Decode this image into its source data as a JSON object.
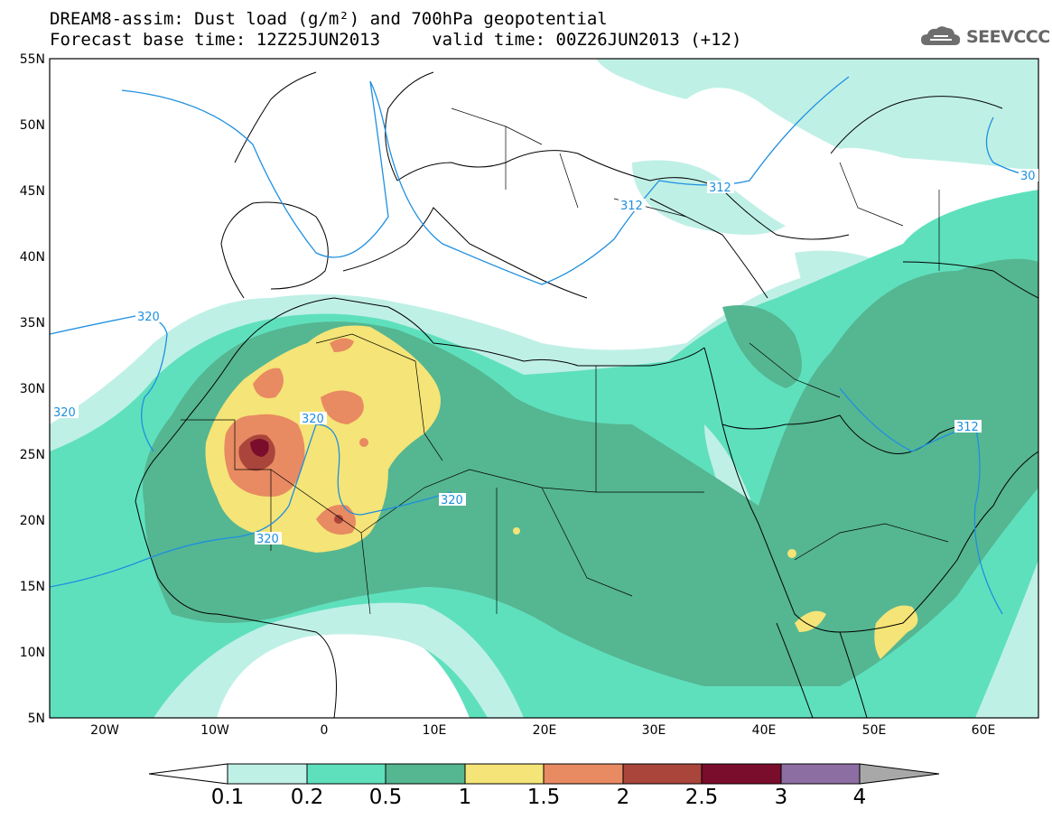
{
  "title": {
    "line1": "DREAM8-assim: Dust load (g/m²) and 700hPa geopotential",
    "line2": "Forecast base time: 12Z25JUN2013     valid time: 00Z26JUN2013 (+12)"
  },
  "logo": {
    "text": "SEEVCCC",
    "icon": "cloud-logo-icon"
  },
  "axes": {
    "lat_labels": [
      "55N",
      "50N",
      "45N",
      "40N",
      "35N",
      "30N",
      "25N",
      "20N",
      "15N",
      "10N",
      "5N"
    ],
    "lon_labels": [
      "20W",
      "10W",
      "0",
      "10E",
      "20E",
      "30E",
      "40E",
      "50E",
      "60E"
    ],
    "lat_range": [
      5,
      55
    ],
    "lon_range": [
      -25,
      65
    ]
  },
  "contour_labels": [
    "320",
    "320",
    "320",
    "320",
    "320",
    "312",
    "312",
    "312",
    "30"
  ],
  "legend": {
    "ticks": [
      "0.1",
      "0.2",
      "0.5",
      "1",
      "1.5",
      "2",
      "2.5",
      "3",
      "4"
    ],
    "colors": [
      "#bff0e6",
      "#5fe0bd",
      "#55b692",
      "#f5e477",
      "#e88a62",
      "#a9453b",
      "#7a0c2c",
      "#8d6ea3"
    ],
    "under_color": "#ffffff",
    "over_color": "#a8a8a8"
  }
}
